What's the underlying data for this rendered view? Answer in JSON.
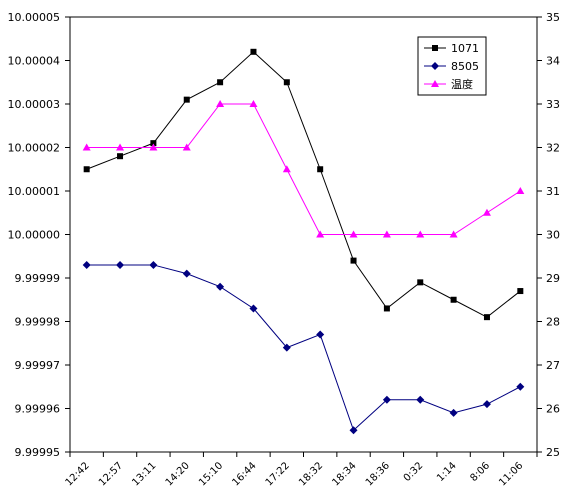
{
  "chart_data": {
    "type": "line",
    "categories": [
      "12:42",
      "12:57",
      "13:11",
      "14:20",
      "15:10",
      "16:44",
      "17:22",
      "18:32",
      "18:34",
      "18:36",
      "0:32",
      "1:14",
      "8:06",
      "11:06"
    ],
    "ylim_left": [
      9.99995,
      10.00005
    ],
    "ylim_right": [
      25,
      35
    ],
    "yticks_left": [
      "10.00005",
      "10.00004",
      "10.00003",
      "10.00002",
      "10.00001",
      "10.00000",
      "9.99999",
      "9.99998",
      "9.99997",
      "9.99996",
      "9.99995"
    ],
    "yticks_right": [
      "35",
      "34",
      "33",
      "32",
      "31",
      "30",
      "29",
      "28",
      "27",
      "26",
      "25"
    ],
    "grid": false,
    "legend_position": "top-right",
    "series": [
      {
        "name": "1071",
        "axis": "left",
        "color": "#000000",
        "marker": "square",
        "values": [
          10.000015,
          10.000018,
          10.000021,
          10.000031,
          10.000035,
          10.000042,
          10.000035,
          10.000015,
          9.999994,
          9.999983,
          9.999989,
          9.999985,
          9.999981,
          9.999987
        ]
      },
      {
        "name": "8505",
        "axis": "left",
        "color": "#000080",
        "marker": "diamond",
        "values": [
          9.999993,
          9.999993,
          9.999993,
          9.999991,
          9.999988,
          9.999983,
          9.999974,
          9.999977,
          9.999955,
          9.999962,
          9.999962,
          9.999959,
          9.999961,
          9.999965
        ]
      },
      {
        "name": "温度",
        "axis": "right",
        "color": "#FF00FF",
        "marker": "triangle",
        "values": [
          32,
          32,
          32,
          32,
          33,
          33,
          31.5,
          30,
          30,
          30,
          30,
          30,
          30.5,
          31
        ]
      }
    ]
  }
}
